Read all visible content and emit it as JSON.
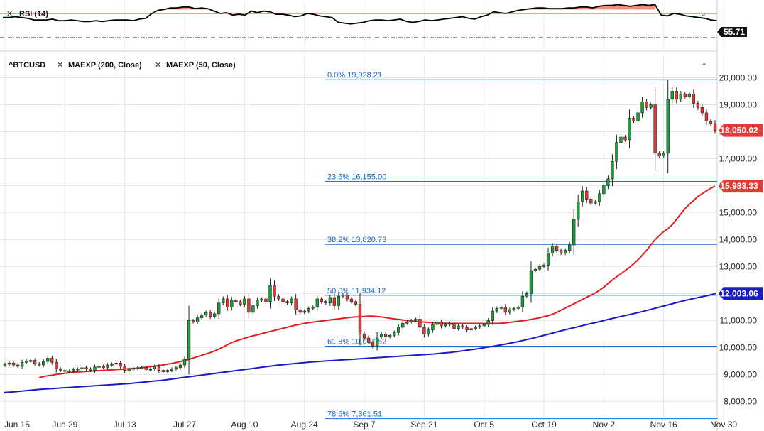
{
  "chart_data": [
    {
      "type": "line",
      "panel": "rsi",
      "title": "RSI (14)",
      "last_value_label": "55.71",
      "ylim": [
        20,
        80
      ],
      "upper_level": 70,
      "lower_level": 30,
      "series": [
        {
          "color": "#000000",
          "values": [
            60,
            60,
            61,
            60,
            59,
            57,
            57,
            57,
            58,
            56,
            56,
            57,
            56,
            55,
            55,
            56,
            55,
            56,
            57,
            57,
            57,
            56,
            58,
            59,
            65,
            69,
            70,
            72,
            72,
            73,
            73,
            71,
            72,
            71,
            68,
            65,
            66,
            63,
            64,
            63,
            68,
            66,
            68,
            67,
            64,
            64,
            63,
            61,
            62,
            65,
            64,
            62,
            61,
            60,
            54,
            53,
            52,
            53,
            54,
            56,
            57,
            57,
            56,
            57,
            58,
            55,
            54,
            55,
            57,
            56,
            57,
            58,
            59,
            60,
            61,
            59,
            58,
            61,
            63,
            67,
            66,
            65,
            67,
            69,
            70,
            71,
            72,
            72,
            71,
            71,
            71,
            72,
            72,
            73,
            73,
            72,
            74,
            75,
            75,
            76,
            75,
            74,
            75,
            76,
            75,
            76,
            63,
            62,
            65,
            64,
            62,
            61,
            60,
            59,
            57,
            56
          ]
        }
      ]
    },
    {
      "type": "candlestick",
      "panel": "price",
      "legend": [
        "^BTCUSD",
        "MAEXP (200, Close)",
        "MAEXP (50, Close)"
      ],
      "ylim": [
        7350,
        20250
      ],
      "yticks": [
        8000,
        9000,
        10000,
        11000,
        12000,
        13000,
        14000,
        15000,
        16000,
        17000,
        18000,
        19000,
        20000
      ],
      "ytick_labels": [
        "8,000.00",
        "9,000.00",
        "10,000.00",
        "11,000.00",
        "12,000.00",
        "13,000.00",
        "14,000.00",
        "15,000.00",
        "16,000.00",
        "17,000.00",
        "18,000.00",
        "19,000.00",
        "20,000.00"
      ],
      "x_tick_labels": [
        "Jun 15",
        "Jun 29",
        "Jul 13",
        "Jul 27",
        "Aug 10",
        "Aug 24",
        "Sep 7",
        "Sep 21",
        "Oct 5",
        "Oct 19",
        "Nov 2",
        "Nov 16",
        "Nov 30"
      ],
      "x_tick_index": [
        0,
        14,
        28,
        42,
        56,
        70,
        84,
        98,
        112,
        126,
        140,
        154,
        168
      ],
      "last_price_label": "18,050.02",
      "ma50_last_label": "15,983.33",
      "ma200_last_label": "12,003.06",
      "fibonacci": [
        {
          "label": "0.0% 19,928.21",
          "value": 19928.21
        },
        {
          "label": "23.6% 16,155.00",
          "value": 16155.0
        },
        {
          "label": "38.2% 13,820.73",
          "value": 13820.73
        },
        {
          "label": "50.0% 11,934.12",
          "value": 11934.12
        },
        {
          "label": "61.8% 10,047.52",
          "value": 10047.52
        },
        {
          "label": "78.6% 7,361.51",
          "value": 7361.51
        }
      ],
      "candle_closes": [
        9380,
        9420,
        9350,
        9300,
        9450,
        9500,
        9520,
        9400,
        9350,
        9480,
        9600,
        9450,
        9200,
        9150,
        9120,
        9100,
        9180,
        9200,
        9250,
        9200,
        9150,
        9280,
        9300,
        9250,
        9350,
        9380,
        9420,
        9300,
        9150,
        9200,
        9230,
        9250,
        9260,
        9180,
        9200,
        9300,
        9150,
        9100,
        9150,
        9200,
        9250,
        9350,
        9550,
        11000,
        10950,
        11100,
        11200,
        11300,
        11150,
        11250,
        11650,
        11800,
        11500,
        11750,
        11700,
        11600,
        11800,
        11300,
        11550,
        11750,
        11800,
        11700,
        12300,
        11900,
        11800,
        11700,
        11650,
        11800,
        11400,
        11300,
        11350,
        11450,
        11500,
        11800,
        11700,
        11650,
        11850,
        11550,
        11900,
        11950,
        11800,
        11700,
        11600,
        10500,
        10350,
        10200,
        10050,
        10400,
        10500,
        10400,
        10450,
        10550,
        10750,
        10900,
        10950,
        11000,
        11050,
        10750,
        10500,
        10650,
        10850,
        10950,
        10800,
        10850,
        10900,
        10700,
        10800,
        10750,
        10650,
        10700,
        10750,
        10800,
        10850,
        11000,
        11350,
        11450,
        11500,
        11300,
        11400,
        11450,
        11500,
        11900,
        12000,
        12850,
        12900,
        13000,
        13050,
        13500,
        13750,
        13600,
        13500,
        13600,
        13800,
        14750,
        15400,
        15800,
        15500,
        15350,
        15400,
        15700,
        16000,
        16250,
        16900,
        17600,
        17800,
        17700,
        18500,
        18400,
        18700,
        19100,
        18900,
        19000,
        17200,
        17100,
        17200,
        19200,
        19500,
        19200,
        19400,
        19300,
        19400,
        19050,
        18900,
        18700,
        18400,
        18300,
        18050
      ],
      "ma50_values": [
        8880,
        8920,
        8950,
        8970,
        9000,
        9020,
        9040,
        9060,
        9080,
        9090,
        9100,
        9110,
        9120,
        9130,
        9140,
        9150,
        9160,
        9170,
        9180,
        9190,
        9200,
        9210,
        9220,
        9230,
        9250,
        9270,
        9290,
        9310,
        9330,
        9350,
        9380,
        9410,
        9440,
        9480,
        9520,
        9560,
        9610,
        9660,
        9710,
        9760,
        9810,
        9870,
        9940,
        10020,
        10100,
        10180,
        10240,
        10290,
        10340,
        10390,
        10430,
        10470,
        10510,
        10550,
        10590,
        10630,
        10670,
        10710,
        10750,
        10790,
        10830,
        10860,
        10890,
        10920,
        10940,
        10960,
        10980,
        11000,
        11020,
        11040,
        11060,
        11080,
        11100,
        11120,
        11130,
        11140,
        11150,
        11160,
        11160,
        11150,
        11130,
        11110,
        11080,
        11060,
        11040,
        11020,
        11000,
        10980,
        10960,
        10950,
        10940,
        10930,
        10920,
        10910,
        10900,
        10900,
        10890,
        10890,
        10890,
        10890,
        10890,
        10890,
        10890,
        10890,
        10890,
        10890,
        10890,
        10890,
        10900,
        10910,
        10930,
        10950,
        10970,
        10990,
        11010,
        11040,
        11070,
        11100,
        11140,
        11180,
        11230,
        11300,
        11380,
        11460,
        11540,
        11620,
        11700,
        11780,
        11860,
        11940,
        12020,
        12120,
        12240,
        12370,
        12500,
        12620,
        12730,
        12850,
        12970,
        13100,
        13250,
        13420,
        13600,
        13800,
        14000,
        14150,
        14300,
        14400,
        14550,
        14750,
        14950,
        15150,
        15300,
        15450,
        15600,
        15700,
        15800,
        15900,
        15983
      ],
      "ma200_values": [
        8330,
        8350,
        8380,
        8410,
        8440,
        8460,
        8480,
        8500,
        8520,
        8540,
        8560,
        8580,
        8600,
        8620,
        8640,
        8660,
        8690,
        8720,
        8750,
        8780,
        8820,
        8860,
        8900,
        8940,
        8980,
        9020,
        9060,
        9100,
        9140,
        9180,
        9220,
        9260,
        9300,
        9340,
        9370,
        9400,
        9430,
        9460,
        9480,
        9500,
        9520,
        9540,
        9560,
        9580,
        9600,
        9620,
        9640,
        9660,
        9680,
        9700,
        9720,
        9740,
        9760,
        9790,
        9820,
        9860,
        9900,
        9940,
        9990,
        10040,
        10090,
        10150,
        10210,
        10280,
        10350,
        10430,
        10510,
        10590,
        10670,
        10740,
        10820,
        10890,
        10960,
        11040,
        11110,
        11180,
        11250,
        11320,
        11400,
        11480,
        11560,
        11640,
        11720,
        11790,
        11860,
        11920,
        12003
      ]
    }
  ]
}
